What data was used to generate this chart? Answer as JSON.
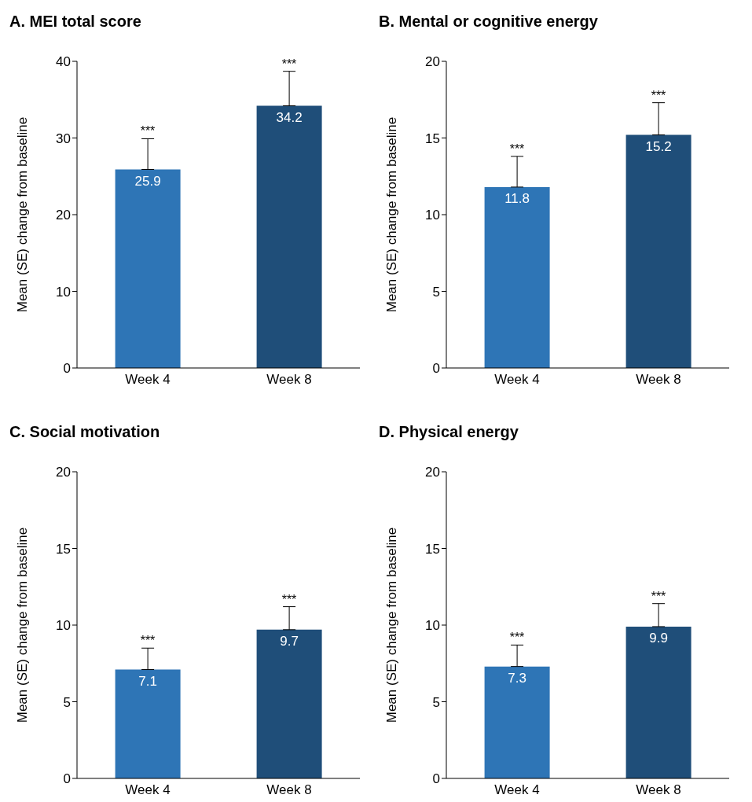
{
  "chart_data": [
    {
      "type": "bar",
      "title": "A. MEI total score",
      "ylabel": "Mean (SE) change from baseline",
      "categories": [
        "Week 4",
        "Week 8"
      ],
      "values": [
        25.9,
        34.2
      ],
      "colors": [
        "#2e75b6",
        "#1f4e79"
      ],
      "errors": [
        [
          25.9,
          29.9
        ],
        [
          34.2,
          38.7
        ]
      ],
      "ylim": [
        0,
        40
      ],
      "yticks": [
        0,
        10,
        20,
        30,
        40
      ],
      "data_labels": true,
      "grid": false,
      "annotations": [
        "***",
        "***"
      ]
    },
    {
      "type": "bar",
      "title": "B. Mental or cognitive energy",
      "ylabel": "Mean (SE) change from baseline",
      "categories": [
        "Week 4",
        "Week 8"
      ],
      "values": [
        11.8,
        15.2
      ],
      "colors": [
        "#2e75b6",
        "#1f4e79"
      ],
      "errors": [
        [
          11.8,
          13.8
        ],
        [
          15.2,
          17.3
        ]
      ],
      "ylim": [
        0,
        20
      ],
      "yticks": [
        0,
        5,
        10,
        15,
        20
      ],
      "data_labels": true,
      "grid": false,
      "annotations": [
        "***",
        "***"
      ]
    },
    {
      "type": "bar",
      "title": "C. Social motivation",
      "ylabel": "Mean (SE) change from baseline",
      "categories": [
        "Week 4",
        "Week 8"
      ],
      "values": [
        7.1,
        9.7
      ],
      "colors": [
        "#2e75b6",
        "#1f4e79"
      ],
      "errors": [
        [
          7.1,
          8.5
        ],
        [
          9.7,
          11.2
        ]
      ],
      "ylim": [
        0,
        20
      ],
      "yticks": [
        0,
        5,
        10,
        15,
        20
      ],
      "data_labels": true,
      "grid": false,
      "annotations": [
        "***",
        "***"
      ]
    },
    {
      "type": "bar",
      "title": "D. Physical energy",
      "ylabel": "Mean (SE) change from baseline",
      "categories": [
        "Week 4",
        "Week 8"
      ],
      "values": [
        7.3,
        9.9
      ],
      "colors": [
        "#2e75b6",
        "#1f4e79"
      ],
      "errors": [
        [
          7.3,
          8.7
        ],
        [
          9.9,
          11.4
        ]
      ],
      "ylim": [
        0,
        20
      ],
      "yticks": [
        0,
        5,
        10,
        15,
        20
      ],
      "data_labels": true,
      "grid": false,
      "annotations": [
        "***",
        "***"
      ]
    }
  ]
}
